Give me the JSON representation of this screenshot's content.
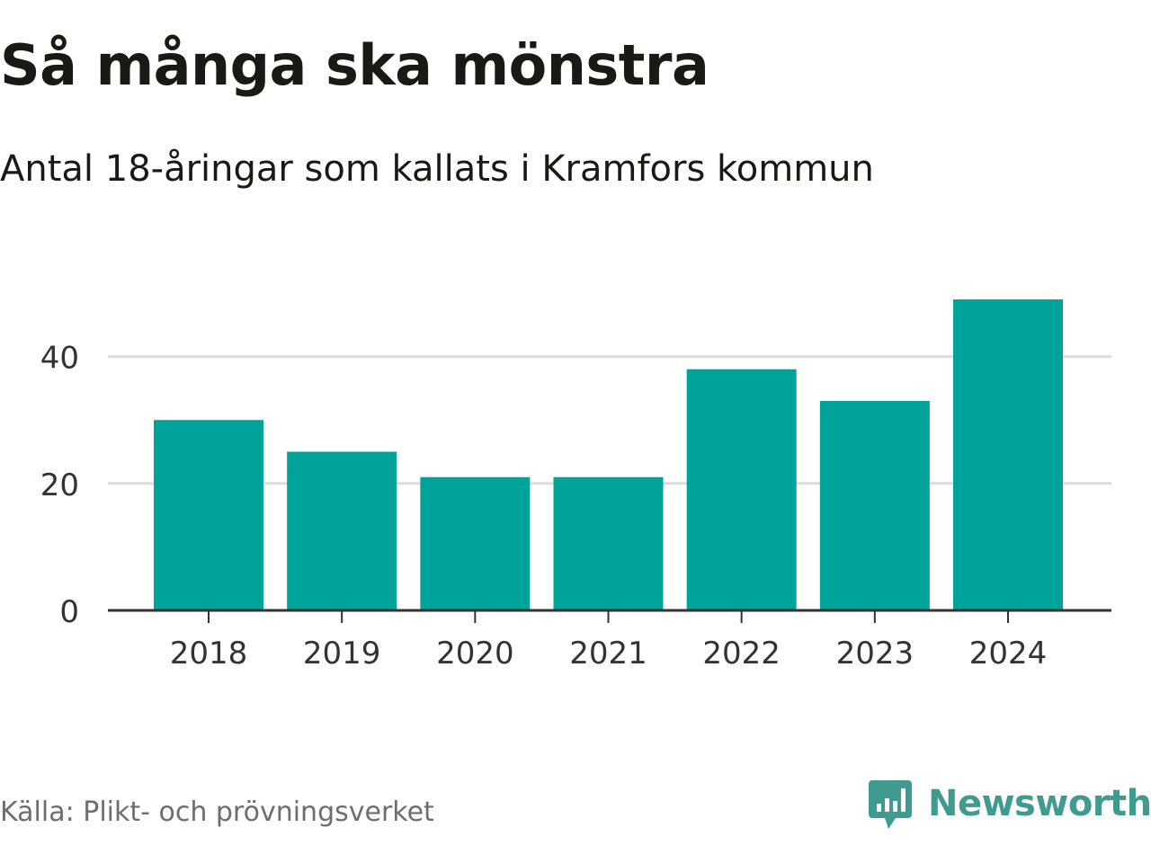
{
  "title": "Så många ska mönstra",
  "subtitle": "Antal 18-åringar som kallats i Kramfors kommun",
  "source": "Källa: Plikt- och prövningsverket",
  "brand": {
    "name": "Newsworthy",
    "icon": "newsworthy-chart-bubble-icon",
    "color": "#3f9b8f"
  },
  "chart_data": {
    "type": "bar",
    "categories": [
      "2018",
      "2019",
      "2020",
      "2021",
      "2022",
      "2023",
      "2024"
    ],
    "values": [
      30,
      25,
      21,
      21,
      38,
      33,
      49
    ],
    "xlabel": "",
    "ylabel": "",
    "ylim": [
      0,
      50
    ],
    "yticks": [
      "0",
      "20",
      "40"
    ],
    "grid": true,
    "bar_color": "#00a39a",
    "grid_color": "#dcdcdc",
    "axis_color": "#333333"
  }
}
